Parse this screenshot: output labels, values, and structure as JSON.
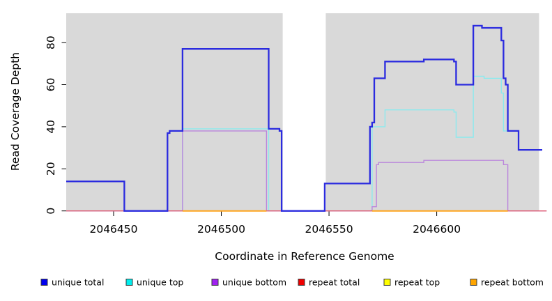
{
  "chart_data": {
    "type": "line",
    "subtype": "step",
    "title": "",
    "xlabel": "Coordinate in Reference Genome",
    "ylabel": "Read Coverage Depth",
    "xlim": [
      2046428,
      2046651
    ],
    "ylim": [
      0,
      95
    ],
    "grid": false,
    "xticks": {
      "values": [
        2046450,
        2046500,
        2046550,
        2046600
      ],
      "labels": [
        "2046450",
        "2046500",
        "2046550",
        "2046600"
      ]
    },
    "yticks": {
      "values": [
        0,
        20,
        40,
        60,
        80
      ],
      "labels": [
        "0",
        "20",
        "40",
        "60",
        "80"
      ]
    },
    "plot_shading": {
      "color": "#d9d9d9",
      "regions": [
        [
          2046428,
          2046528.5
        ],
        [
          2046548.5,
          2046647.5
        ]
      ]
    },
    "series": [
      {
        "name": "repeat top",
        "line_color": "#efe95a",
        "line_width": 1.2,
        "segments": [
          [
            [
              2046428,
              0
            ],
            [
              2046651,
              0
            ]
          ]
        ]
      },
      {
        "name": "unique top",
        "line_color": "#8beaee",
        "line_width": 1.4,
        "segments": [
          [
            [
              2046428,
              0
            ],
            [
              2046482,
              39
            ],
            [
              2046522,
              0
            ],
            [
              2046570,
              40
            ],
            [
              2046576,
              48
            ],
            [
              2046608,
              47
            ],
            [
              2046609,
              35
            ],
            [
              2046617,
              64
            ],
            [
              2046622,
              63
            ],
            [
              2046630,
              56
            ],
            [
              2046631,
              38
            ],
            [
              2046638,
              29
            ],
            [
              2046649,
              29
            ]
          ]
        ]
      },
      {
        "name": "unique bottom",
        "line_color": "#bb85dc",
        "line_width": 1.4,
        "segments": [
          [
            [
              2046428,
              0
            ],
            [
              2046482,
              38
            ],
            [
              2046521,
              0
            ],
            [
              2046570,
              2
            ],
            [
              2046572,
              22
            ],
            [
              2046573,
              23
            ],
            [
              2046594,
              24
            ],
            [
              2046631,
              22
            ],
            [
              2046633,
              0
            ],
            [
              2046651,
              0
            ]
          ]
        ]
      },
      {
        "name": "repeat total",
        "line_color": "#e05a72",
        "line_width": 1.3,
        "segments": [
          [
            [
              2046428,
              0
            ],
            [
              2046651,
              0
            ]
          ]
        ]
      },
      {
        "name": "repeat bottom",
        "line_color": "#ffa51e",
        "line_width": 2.0,
        "segments": [
          [
            [
              2046482,
              0
            ],
            [
              2046521,
              0
            ]
          ],
          [
            [
              2046570,
              0
            ],
            [
              2046633,
              0
            ]
          ]
        ]
      },
      {
        "name": "unique total",
        "line_color": "#2b2bdf",
        "line_width": 2.3,
        "segments": [
          [
            [
              2046428,
              14
            ],
            [
              2046455,
              0
            ],
            [
              2046475,
              37
            ],
            [
              2046476,
              38
            ],
            [
              2046482,
              77
            ],
            [
              2046522,
              39
            ],
            [
              2046527,
              38
            ],
            [
              2046528,
              0
            ],
            [
              2046548,
              13
            ],
            [
              2046569,
              40
            ],
            [
              2046570,
              42
            ],
            [
              2046571,
              63
            ],
            [
              2046576,
              71
            ],
            [
              2046594,
              72
            ],
            [
              2046608,
              71
            ],
            [
              2046609,
              60
            ],
            [
              2046617,
              88
            ],
            [
              2046621,
              87
            ],
            [
              2046630,
              81
            ],
            [
              2046631,
              63
            ],
            [
              2046632,
              60
            ],
            [
              2046633,
              38
            ],
            [
              2046638,
              29
            ],
            [
              2046649,
              29
            ]
          ]
        ]
      }
    ],
    "legend": {
      "position": "bottom",
      "entries": [
        {
          "label": "unique total",
          "swatch_color": "#0000ee"
        },
        {
          "label": "unique top",
          "swatch_color": "#00eeee"
        },
        {
          "label": "unique bottom",
          "swatch_color": "#a020f0"
        },
        {
          "label": "repeat total",
          "swatch_color": "#ee0000"
        },
        {
          "label": "repeat top",
          "swatch_color": "#ffff00"
        },
        {
          "label": "repeat bottom",
          "swatch_color": "#ffa500"
        }
      ]
    }
  }
}
